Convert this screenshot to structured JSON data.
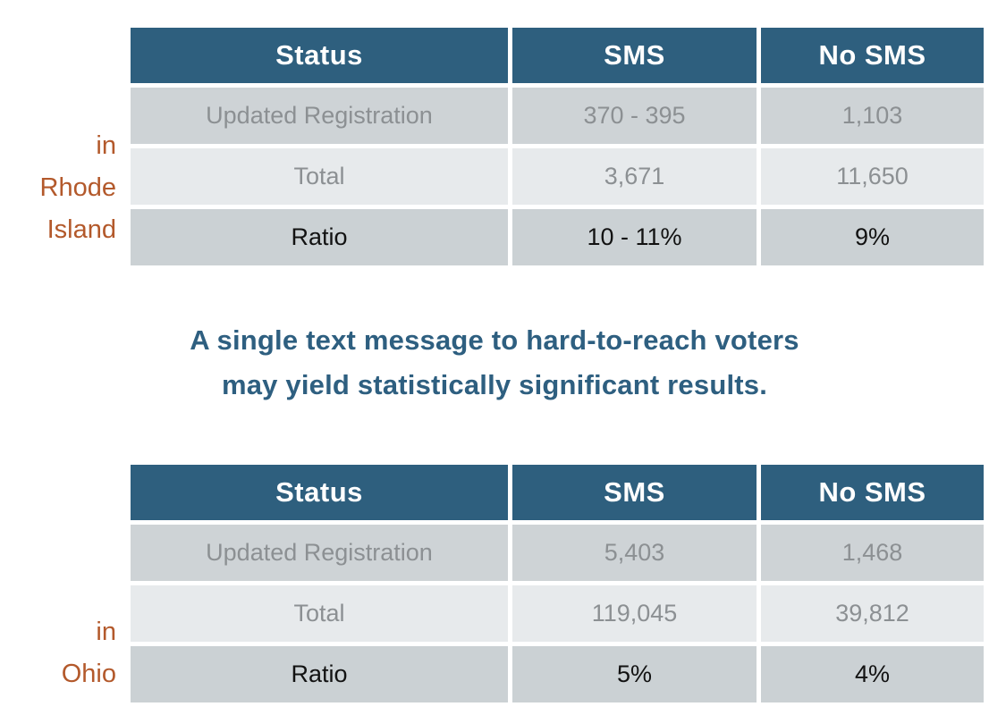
{
  "colors": {
    "header_bg": "#2E5F7E",
    "row_gray_bg": "#CED3D6",
    "row_light_bg": "#E7EAEC",
    "row_ratio_bg": "#CBD1D4",
    "muted_text": "#8C9093",
    "dark_text": "#121212",
    "accent_orange": "#B3592B",
    "accent_teal": "#2E5F80",
    "background": "#FFFFFF"
  },
  "callout": {
    "line1": "A single text message to hard-to-reach voters",
    "line2": "may yield statistically significant results."
  },
  "tables": [
    {
      "id": "rhode-island",
      "region_label_lines": [
        "in",
        "Rhode",
        "Island"
      ],
      "columns": [
        "Status",
        "SMS",
        "No SMS"
      ],
      "rows": [
        {
          "label": "Updated Registration",
          "sms": "370 - 395",
          "no_sms": "1,103"
        },
        {
          "label": "Total",
          "sms": "3,671",
          "no_sms": "11,650"
        },
        {
          "label": "Ratio",
          "sms": "10 - 11%",
          "no_sms": "9%"
        }
      ]
    },
    {
      "id": "ohio",
      "region_label_lines": [
        "in",
        "Ohio"
      ],
      "columns": [
        "Status",
        "SMS",
        "No SMS"
      ],
      "rows": [
        {
          "label": "Updated Registration",
          "sms": "5,403",
          "no_sms": "1,468"
        },
        {
          "label": "Total",
          "sms": "119,045",
          "no_sms": "39,812"
        },
        {
          "label": "Ratio",
          "sms": "5%",
          "no_sms": "4%"
        }
      ]
    }
  ],
  "chart_data": [
    {
      "type": "table",
      "title": "in Rhode Island",
      "columns": [
        "Status",
        "SMS",
        "No SMS"
      ],
      "rows": [
        [
          "Updated Registration",
          "370 - 395",
          "1,103"
        ],
        [
          "Total",
          "3,671",
          "11,650"
        ],
        [
          "Ratio",
          "10 - 11%",
          "9%"
        ]
      ]
    },
    {
      "type": "table",
      "title": "in Ohio",
      "columns": [
        "Status",
        "SMS",
        "No SMS"
      ],
      "rows": [
        [
          "Updated Registration",
          "5,403",
          "1,468"
        ],
        [
          "Total",
          "119,045",
          "39,812"
        ],
        [
          "Ratio",
          "5%",
          "4%"
        ]
      ]
    }
  ]
}
